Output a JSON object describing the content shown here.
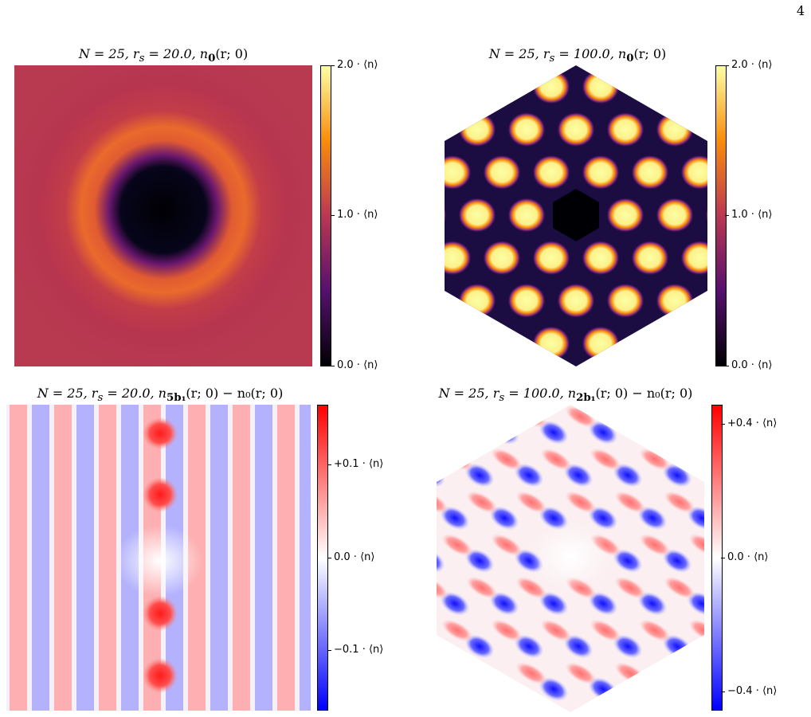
{
  "page_number": "4",
  "panels": [
    {
      "title_prefix": "N = 25, r",
      "title_sub": "s",
      "title_value": " = 20.0, n",
      "title_index": "0",
      "title_args": "(r; 0)",
      "title_tail": "",
      "shape": "square",
      "colormap": "inferno",
      "colorbar_ticks": [
        "2.0 · ⟨n⟩",
        "1.0 · ⟨n⟩",
        "0.0 · ⟨n⟩"
      ]
    },
    {
      "title_prefix": "N = 25, r",
      "title_sub": "s",
      "title_value": " = 100.0, n",
      "title_index": "0",
      "title_args": "(r; 0)",
      "title_tail": "",
      "shape": "hexagon",
      "colormap": "inferno",
      "colorbar_ticks": [
        "2.0 · ⟨n⟩",
        "1.0 · ⟨n⟩",
        "0.0 · ⟨n⟩"
      ]
    },
    {
      "title_prefix": "N = 25, r",
      "title_sub": "s",
      "title_value": " = 20.0, n",
      "title_index": "5b₁",
      "title_args": "(r; 0)",
      "title_tail": " − n₀(r; 0)",
      "shape": "square",
      "colormap": "bwr",
      "colorbar_ticks": [
        "+0.1 · ⟨n⟩",
        "0.0 · ⟨n⟩",
        "−0.1 · ⟨n⟩"
      ]
    },
    {
      "title_prefix": "N = 25, r",
      "title_sub": "s",
      "title_value": " = 100.0, n",
      "title_index": "2b₁",
      "title_args": "(r; 0)",
      "title_tail": " − n₀(r; 0)",
      "shape": "hexagon",
      "colormap": "bwr",
      "colorbar_ticks": [
        "+0.4 · ⟨n⟩",
        "0.0 · ⟨n⟩",
        "−0.4 · ⟨n⟩"
      ]
    }
  ],
  "colors": {
    "inferno_dark": "#000004",
    "inferno_purple": "#56106e",
    "inferno_mid": "#bb3754",
    "inferno_orange": "#f98c0a",
    "inferno_light": "#fcffa4",
    "blue": "#0000ff",
    "white": "#ffffff",
    "red": "#ff0000"
  }
}
